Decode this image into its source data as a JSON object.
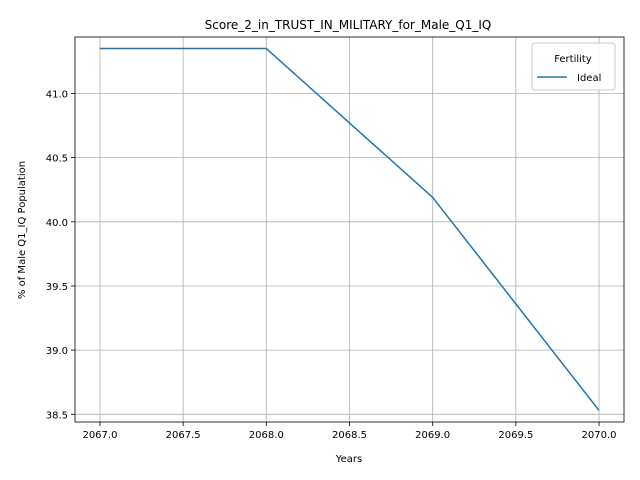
{
  "chart_data": {
    "type": "line",
    "title": "Score_2_in_TRUST_IN_MILITARY_for_Male_Q1_IQ",
    "xlabel": "Years",
    "ylabel": "% of Male Q1_IQ Population",
    "x": [
      2067,
      2068,
      2069,
      2070
    ],
    "series": [
      {
        "name": "Ideal",
        "color": "#1f77b4",
        "values": [
          41.35,
          41.35,
          40.19,
          38.53
        ]
      }
    ],
    "xlim": [
      2066.85,
      2070.15
    ],
    "ylim": [
      38.44,
      41.44
    ],
    "xticks": [
      "2067.0",
      "2067.5",
      "2068.0",
      "2068.5",
      "2069.0",
      "2069.5",
      "2070.0"
    ],
    "xtick_values": [
      2067.0,
      2067.5,
      2068.0,
      2068.5,
      2069.0,
      2069.5,
      2070.0
    ],
    "yticks": [
      "38.5",
      "39.0",
      "39.5",
      "40.0",
      "40.5",
      "41.0"
    ],
    "ytick_values": [
      38.5,
      39.0,
      39.5,
      40.0,
      40.5,
      41.0
    ],
    "grid": true,
    "legend": {
      "title": "Fertility",
      "placement": "upper-right"
    }
  }
}
